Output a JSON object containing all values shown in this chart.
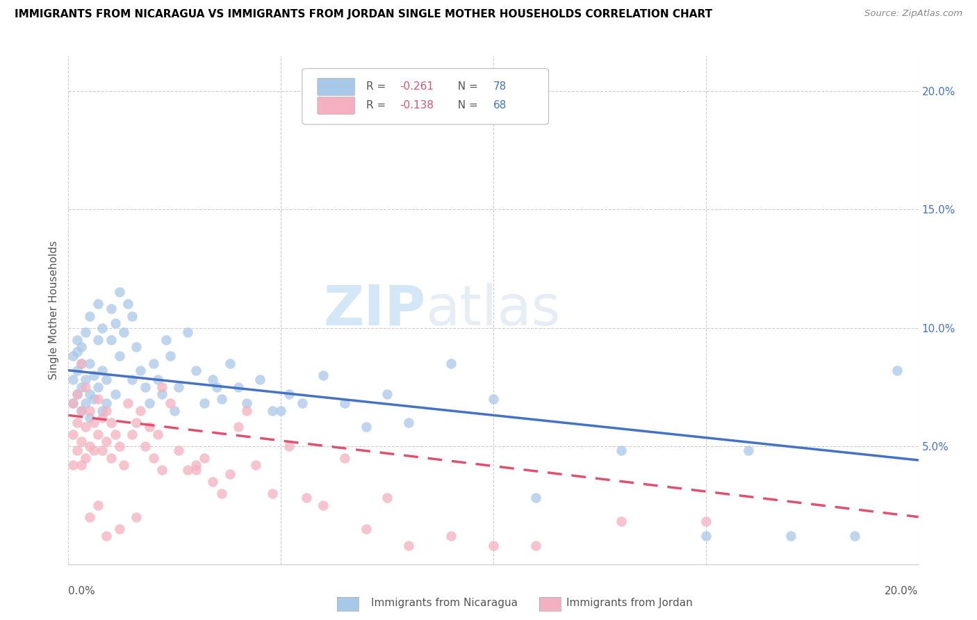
{
  "title": "IMMIGRANTS FROM NICARAGUA VS IMMIGRANTS FROM JORDAN SINGLE MOTHER HOUSEHOLDS CORRELATION CHART",
  "source": "Source: ZipAtlas.com",
  "ylabel": "Single Mother Households",
  "legend_label1": "Immigrants from Nicaragua",
  "legend_label2": "Immigrants from Jordan",
  "r1": -0.261,
  "n1": 78,
  "r2": -0.138,
  "n2": 68,
  "color1": "#a8c8e8",
  "color2": "#f4b0c0",
  "line_color1": "#4472c4",
  "line_color2": "#e05070",
  "xmin": 0.0,
  "xmax": 0.2,
  "ymin": 0.0,
  "ymax": 0.215,
  "xtick_vals": [
    0.0,
    0.05,
    0.1,
    0.15,
    0.2
  ],
  "xtick_labels": [
    "0.0%",
    "5.0%",
    "10.0%",
    "15.0%",
    "20.0%"
  ],
  "ytick_vals": [
    0.05,
    0.1,
    0.15,
    0.2
  ],
  "ytick_labels": [
    "5.0%",
    "10.0%",
    "15.0%",
    "20.0%"
  ],
  "bottom_xtick_left": "0.0%",
  "bottom_xtick_right": "20.0%",
  "watermark_zip": "ZIP",
  "watermark_atlas": "atlas",
  "line1_x0": 0.0,
  "line1_y0": 0.082,
  "line1_x1": 0.2,
  "line1_y1": 0.044,
  "line2_x0": 0.0,
  "line2_y0": 0.063,
  "line2_x1": 0.2,
  "line2_y1": 0.02,
  "scatter1_x": [
    0.001,
    0.001,
    0.001,
    0.002,
    0.002,
    0.002,
    0.002,
    0.003,
    0.003,
    0.003,
    0.003,
    0.004,
    0.004,
    0.004,
    0.005,
    0.005,
    0.005,
    0.005,
    0.006,
    0.006,
    0.007,
    0.007,
    0.007,
    0.008,
    0.008,
    0.008,
    0.009,
    0.009,
    0.01,
    0.01,
    0.011,
    0.011,
    0.012,
    0.012,
    0.013,
    0.014,
    0.015,
    0.015,
    0.016,
    0.017,
    0.018,
    0.019,
    0.02,
    0.021,
    0.022,
    0.023,
    0.024,
    0.025,
    0.026,
    0.028,
    0.03,
    0.032,
    0.034,
    0.036,
    0.038,
    0.04,
    0.042,
    0.045,
    0.048,
    0.052,
    0.055,
    0.06,
    0.065,
    0.07,
    0.075,
    0.08,
    0.09,
    0.1,
    0.11,
    0.13,
    0.15,
    0.16,
    0.17,
    0.185,
    0.195,
    0.06,
    0.05,
    0.035
  ],
  "scatter1_y": [
    0.088,
    0.078,
    0.068,
    0.095,
    0.082,
    0.072,
    0.09,
    0.075,
    0.085,
    0.065,
    0.092,
    0.078,
    0.068,
    0.098,
    0.085,
    0.072,
    0.062,
    0.105,
    0.08,
    0.07,
    0.095,
    0.075,
    0.11,
    0.082,
    0.065,
    0.1,
    0.078,
    0.068,
    0.095,
    0.108,
    0.102,
    0.072,
    0.088,
    0.115,
    0.098,
    0.11,
    0.105,
    0.078,
    0.092,
    0.082,
    0.075,
    0.068,
    0.085,
    0.078,
    0.072,
    0.095,
    0.088,
    0.065,
    0.075,
    0.098,
    0.082,
    0.068,
    0.078,
    0.07,
    0.085,
    0.075,
    0.068,
    0.078,
    0.065,
    0.072,
    0.068,
    0.08,
    0.068,
    0.058,
    0.072,
    0.06,
    0.085,
    0.07,
    0.028,
    0.048,
    0.012,
    0.048,
    0.012,
    0.012,
    0.082,
    0.195,
    0.065,
    0.075
  ],
  "scatter2_x": [
    0.001,
    0.001,
    0.001,
    0.002,
    0.002,
    0.002,
    0.003,
    0.003,
    0.003,
    0.004,
    0.004,
    0.004,
    0.005,
    0.005,
    0.006,
    0.006,
    0.007,
    0.007,
    0.008,
    0.008,
    0.009,
    0.009,
    0.01,
    0.01,
    0.011,
    0.012,
    0.013,
    0.014,
    0.015,
    0.016,
    0.017,
    0.018,
    0.019,
    0.02,
    0.021,
    0.022,
    0.024,
    0.026,
    0.028,
    0.03,
    0.032,
    0.034,
    0.036,
    0.038,
    0.04,
    0.042,
    0.044,
    0.048,
    0.052,
    0.056,
    0.06,
    0.065,
    0.07,
    0.075,
    0.08,
    0.09,
    0.1,
    0.11,
    0.13,
    0.15,
    0.003,
    0.005,
    0.007,
    0.009,
    0.012,
    0.016,
    0.022,
    0.03
  ],
  "scatter2_y": [
    0.068,
    0.055,
    0.042,
    0.072,
    0.06,
    0.048,
    0.065,
    0.052,
    0.042,
    0.075,
    0.058,
    0.045,
    0.065,
    0.05,
    0.06,
    0.048,
    0.07,
    0.055,
    0.062,
    0.048,
    0.065,
    0.052,
    0.06,
    0.045,
    0.055,
    0.05,
    0.042,
    0.068,
    0.055,
    0.06,
    0.065,
    0.05,
    0.058,
    0.045,
    0.055,
    0.04,
    0.068,
    0.048,
    0.04,
    0.042,
    0.045,
    0.035,
    0.03,
    0.038,
    0.058,
    0.065,
    0.042,
    0.03,
    0.05,
    0.028,
    0.025,
    0.045,
    0.015,
    0.028,
    0.008,
    0.012,
    0.008,
    0.008,
    0.018,
    0.018,
    0.085,
    0.02,
    0.025,
    0.012,
    0.015,
    0.02,
    0.075,
    0.04
  ]
}
